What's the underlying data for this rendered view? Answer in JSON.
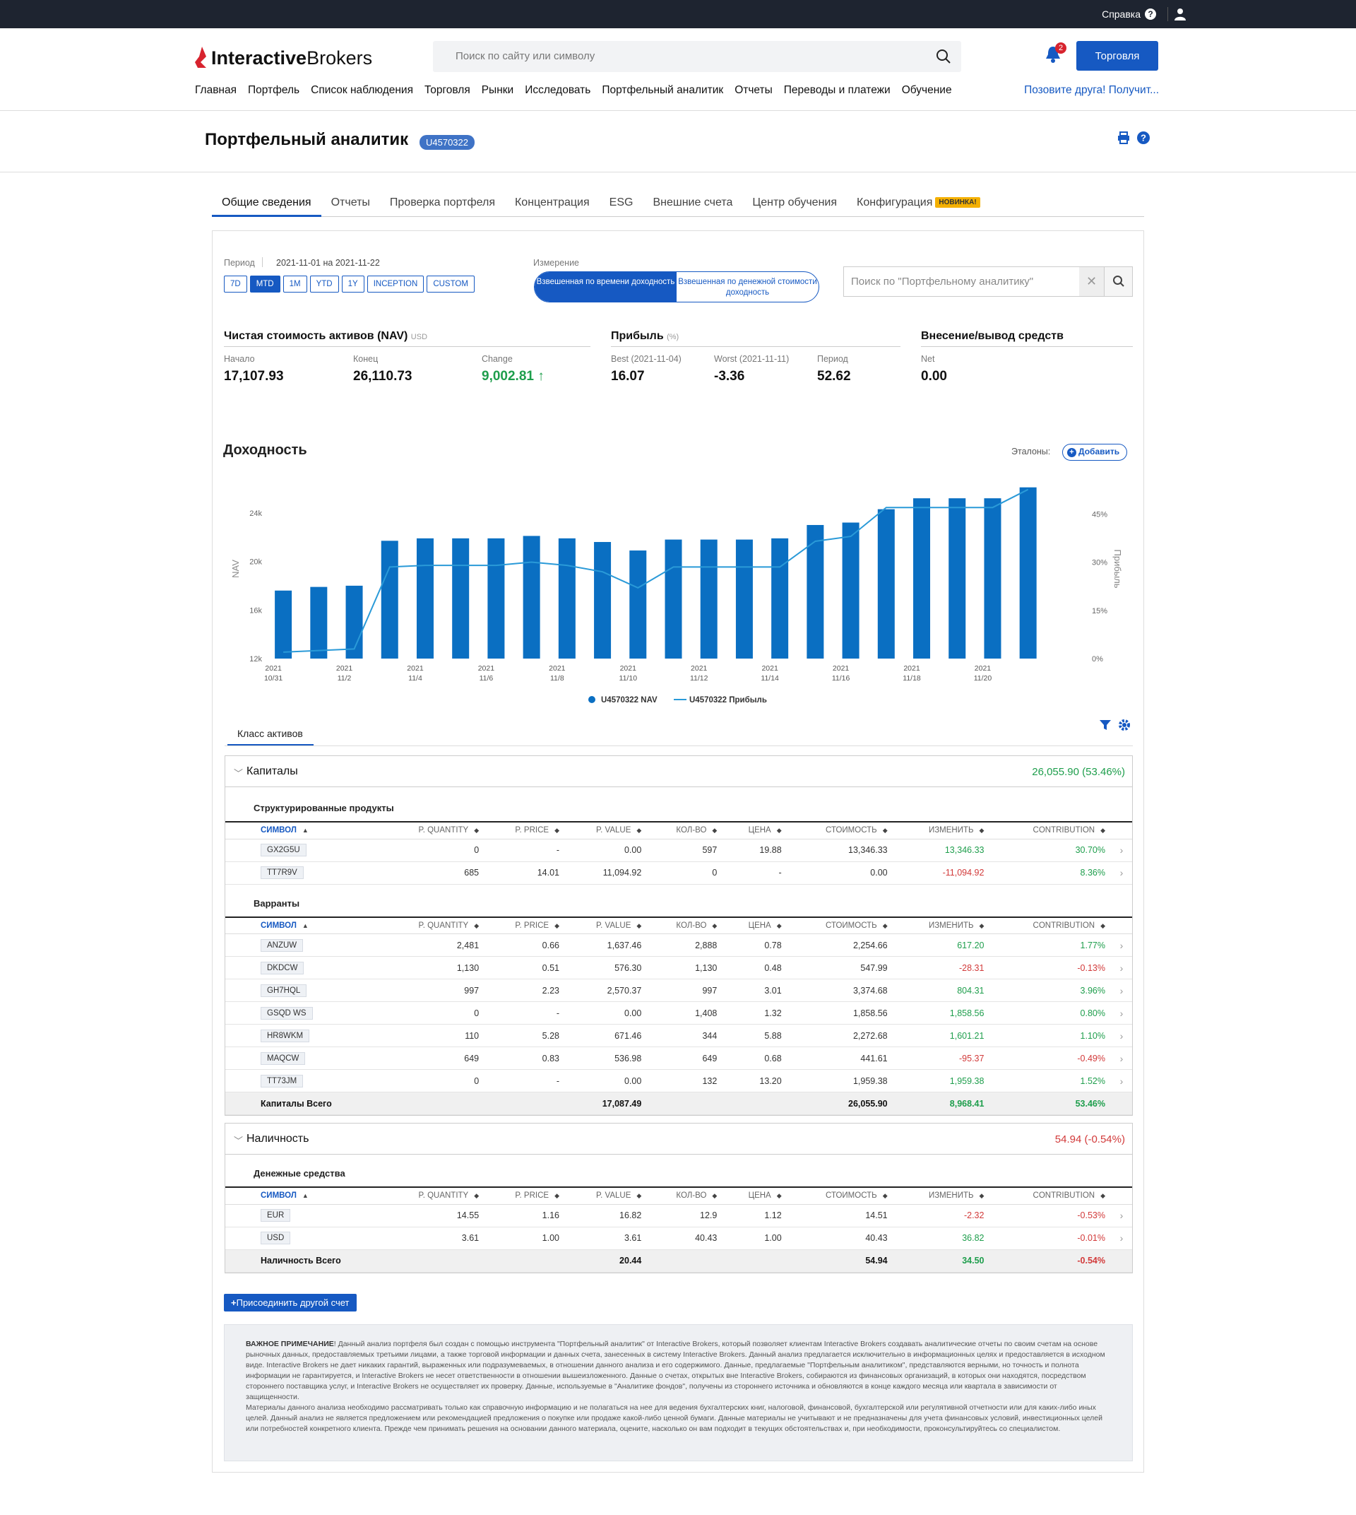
{
  "topbar": {
    "help_label": "Справка"
  },
  "header": {
    "logo_bold": "Interactive",
    "logo_light": "Brokers",
    "search_placeholder": "Поиск по сайту или символу",
    "notifications_count": "2",
    "trade_button": "Торговля",
    "nav": [
      "Главная",
      "Портфель",
      "Список наблюдения",
      "Торговля",
      "Рынки",
      "Исследовать",
      "Портфельный аналитик",
      "Отчеты",
      "Переводы и платежи",
      "Обучение"
    ],
    "refer_link": "Позовите друга! Получит..."
  },
  "page": {
    "title": "Портфельный аналитик",
    "account": "U4570322"
  },
  "tabs": [
    "Общие сведения",
    "Отчеты",
    "Проверка портфеля",
    "Концентрация",
    "ESG",
    "Внешние счета",
    "Центр обучения",
    "Конфигурация"
  ],
  "tab_new_badge": "НОВИНКА!",
  "period": {
    "label": "Период",
    "range": "2021-11-01 на 2021-11-22",
    "buttons": [
      "7D",
      "MTD",
      "1M",
      "YTD",
      "1Y",
      "INCEPTION",
      "CUSTOM"
    ],
    "active": "MTD"
  },
  "measure": {
    "label": "Измерение",
    "option_on": "Взвешенная по времени доходность",
    "option_off": "Взвешенная по денежной стоимости доходность"
  },
  "analyst_search_placeholder": "Поиск по \"Портфельному аналитику\"",
  "nav_summary": {
    "title": "Чистая стоимость активов (NAV)",
    "unit": "USD",
    "start_label": "Начало",
    "start": "17,107.93",
    "end_label": "Конец",
    "end": "26,110.73",
    "change_label": "Change",
    "change": "9,002.81"
  },
  "profit_summary": {
    "title": "Прибыль",
    "unit": "(%)",
    "best_label": "Best (2021-11-04)",
    "best": "16.07",
    "worst_label": "Worst (2021-11-11)",
    "worst": "-3.36",
    "period_label": "Период",
    "period": "52.62"
  },
  "deposits": {
    "title": "Внесение/вывод средств",
    "net_label": "Net",
    "net": "0.00"
  },
  "performance": {
    "title": "Доходность",
    "benchmarks_label": "Эталоны:",
    "add_label": "Добавить"
  },
  "chart_data": {
    "type": "bar",
    "categories": [
      "2021-10-31",
      "2021-11-01",
      "2021-11-02",
      "2021-11-03",
      "2021-11-04",
      "2021-11-05",
      "2021-11-06",
      "2021-11-07",
      "2021-11-08",
      "2021-11-09",
      "2021-11-10",
      "2021-11-11",
      "2021-11-12",
      "2021-11-13",
      "2021-11-14",
      "2021-11-15",
      "2021-11-16",
      "2021-11-17",
      "2021-11-18",
      "2021-11-19",
      "2021-11-20",
      "2021-11-21",
      "2021-11-22"
    ],
    "x_ticks": [
      {
        "top": "2021",
        "bottom": "10/31",
        "index": 0
      },
      {
        "top": "2021",
        "bottom": "11/2",
        "index": 2
      },
      {
        "top": "2021",
        "bottom": "11/4",
        "index": 4
      },
      {
        "top": "2021",
        "bottom": "11/6",
        "index": 6
      },
      {
        "top": "2021",
        "bottom": "11/8",
        "index": 8
      },
      {
        "top": "2021",
        "bottom": "11/10",
        "index": 10
      },
      {
        "top": "2021",
        "bottom": "11/12",
        "index": 12
      },
      {
        "top": "2021",
        "bottom": "11/14",
        "index": 14
      },
      {
        "top": "2021",
        "bottom": "11/16",
        "index": 16
      },
      {
        "top": "2021",
        "bottom": "11/18",
        "index": 18
      },
      {
        "top": "2021",
        "bottom": "11/20",
        "index": 20
      }
    ],
    "series": [
      {
        "name": "U4570322 NAV",
        "axis": "left",
        "kind": "bar",
        "color": "#0a6fc2",
        "values": [
          17600,
          17900,
          18000,
          21700,
          21900,
          21900,
          21900,
          22100,
          21900,
          21600,
          20900,
          21800,
          21800,
          21800,
          21900,
          23000,
          23200,
          24300,
          25200,
          25200,
          25200,
          26100,
          null
        ]
      },
      {
        "name": "U4570322 Прибыль",
        "axis": "right",
        "kind": "line",
        "color": "#2a9ad8",
        "values": [
          2.0,
          2.5,
          3.0,
          28.5,
          29.0,
          29.0,
          29.0,
          30.0,
          29.0,
          27.0,
          22.0,
          28.5,
          28.5,
          28.5,
          28.5,
          36.5,
          38.0,
          47.0,
          47.0,
          47.0,
          47.0,
          52.6,
          null
        ]
      }
    ],
    "ylabel": "NAV",
    "y2label": "Прибыль",
    "ylim": [
      12000,
      25500
    ],
    "y_ticks": [
      "12k",
      "16k",
      "20k",
      "24k"
    ],
    "y_tick_values": [
      12000,
      16000,
      20000,
      24000
    ],
    "y2lim": [
      0,
      51
    ],
    "y2_ticks": [
      "0%",
      "15%",
      "30%",
      "45%"
    ],
    "y2_tick_values": [
      0,
      15,
      30,
      45
    ],
    "legend": "bottom"
  },
  "asset_tab": "Класс активов",
  "columns": [
    "СИМВОЛ",
    "P. QUANTITY",
    "P. PRICE",
    "P. VALUE",
    "КОЛ-ВО",
    "ЦЕНА",
    "СТОИМОСТЬ",
    "ИЗМЕНИТЬ",
    "CONTRIBUTION"
  ],
  "equities": {
    "title": "Капиталы",
    "total": "26,055.90 (53.46%)",
    "structured": {
      "title": "Структурированные продукты",
      "rows": [
        [
          "GX2G5U",
          "0",
          "-",
          "0.00",
          "597",
          "19.88",
          "13,346.33",
          "13,346.33",
          "30.70%"
        ],
        [
          "TT7R9V",
          "685",
          "14.01",
          "11,094.92",
          "0",
          "-",
          "0.00",
          "-11,094.92",
          "8.36%"
        ]
      ]
    },
    "warrants": {
      "title": "Варранты",
      "rows": [
        [
          "ANZUW",
          "2,481",
          "0.66",
          "1,637.46",
          "2,888",
          "0.78",
          "2,254.66",
          "617.20",
          "1.77%"
        ],
        [
          "DKDCW",
          "1,130",
          "0.51",
          "576.30",
          "1,130",
          "0.48",
          "547.99",
          "-28.31",
          "-0.13%"
        ],
        [
          "GH7HQL",
          "997",
          "2.23",
          "2,570.37",
          "997",
          "3.01",
          "3,374.68",
          "804.31",
          "3.96%"
        ],
        [
          "GSQD WS",
          "0",
          "-",
          "0.00",
          "1,408",
          "1.32",
          "1,858.56",
          "1,858.56",
          "0.80%"
        ],
        [
          "HR8WKM",
          "110",
          "5.28",
          "671.46",
          "344",
          "5.88",
          "2,272.68",
          "1,601.21",
          "1.10%"
        ],
        [
          "MAQCW",
          "649",
          "0.83",
          "536.98",
          "649",
          "0.68",
          "441.61",
          "-95.37",
          "-0.49%"
        ],
        [
          "TT73JM",
          "0",
          "-",
          "0.00",
          "132",
          "13.20",
          "1,959.38",
          "1,959.38",
          "1.52%"
        ]
      ]
    },
    "total_row": [
      "Капиталы Всего",
      "",
      "",
      "17,087.49",
      "",
      "",
      "26,055.90",
      "8,968.41",
      "53.46%"
    ]
  },
  "cash": {
    "title": "Наличность",
    "total": "54.94 (-0.54%)",
    "money": {
      "title": "Денежные средства",
      "rows": [
        [
          "EUR",
          "14.55",
          "1.16",
          "16.82",
          "12.9",
          "1.12",
          "14.51",
          "-2.32",
          "-0.53%"
        ],
        [
          "USD",
          "3.61",
          "1.00",
          "3.61",
          "40.43",
          "1.00",
          "40.43",
          "36.82",
          "-0.01%"
        ]
      ]
    },
    "total_row": [
      "Наличность Всего",
      "",
      "",
      "20.44",
      "",
      "",
      "54.94",
      "34.50",
      "-0.54%"
    ]
  },
  "join_button": "Присоединить другой счет",
  "note": {
    "bold": "ВАЖНОЕ ПРИМЕЧАНИЕ",
    "p1": "! Данный анализ портфеля был создан с помощью инструмента \"Портфельный аналитик\" от Interactive Brokers, который позволяет клиентам Interactive Brokers создавать аналитические отчеты по своим счетам на основе рыночных данных, предоставляемых третьими лицами, а также торговой информации и данных счета, занесенных в систему Interactive Brokers. Данный анализ предлагается исключительно в информационных целях и предоставляется в исходном виде. Interactive Brokers не дает никаких гарантий, выраженных или подразумеваемых, в отношении данного анализа и его содержимого. Данные, предлагаемые \"Портфельным аналитиком\", представляются верными, но точность и полнота информации не гарантируется, и Interactive Brokers не несет ответственности в отношении вышеизложенного. Данные о счетах, открытых вне Interactive Brokers, собираются из финансовых организаций, в которых они находятся, посредством стороннего поставщика услуг, и Interactive Brokers не осуществляет их проверку. Данные, используемые в \"Аналитике фондов\", получены из стороннего источника и обновляются в конце каждого месяца или квартала в зависимости от защищенности.",
    "p2": "Материалы данного анализа необходимо рассматривать только как справочную информацию и не полагаться на нее для ведения бухгалтерских книг, налоговой, финансовой, бухгалтерской или регулятивной отчетности или для каких-либо иных целей. Данный анализ не является предложением или рекомендацией предложения о покупке или продаже какой-либо ценной бумаги. Данные материалы не учитывают и не предназначены для учета финансовых условий, инвестиционных целей или потребностей конкретного клиента. Прежде чем принимать решения на основании данного материала, оцените, насколько он вам подходит в текущих обстоятельствах и, при необходимости, проконсультируйтесь со специалистом."
  }
}
